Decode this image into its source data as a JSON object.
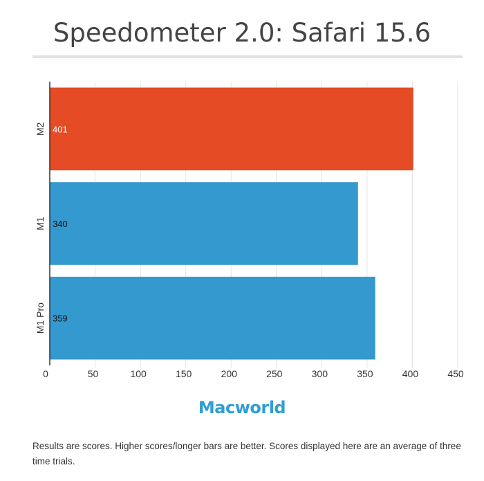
{
  "chart_data": {
    "type": "bar",
    "orientation": "horizontal",
    "title": "Speedometer 2.0: Safari 15.6",
    "categories": [
      "M2",
      "M1",
      "M1 Pro"
    ],
    "values": [
      401,
      340,
      359
    ],
    "bar_colors": [
      "#e54b24",
      "#3399cf",
      "#3399cf"
    ],
    "xlim": [
      0,
      450
    ],
    "x_ticks": [
      0,
      50,
      100,
      150,
      200,
      250,
      300,
      350,
      400,
      450
    ],
    "grid": true,
    "legend": "none"
  },
  "branding": {
    "logo_text": "Macworld"
  },
  "footnote": "Results are scores. Higher scores/longer bars are better. Scores displayed here are an average of three time trials."
}
